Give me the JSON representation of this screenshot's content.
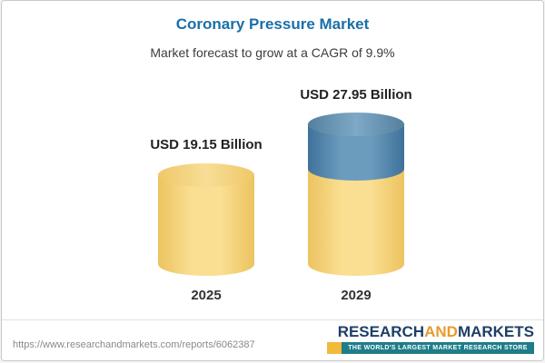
{
  "chart_data": {
    "type": "bar",
    "title": "Coronary Pressure Market",
    "subtitle": "Market forecast to grow at a CAGR of 9.9%",
    "categories": [
      "2025",
      "2029"
    ],
    "values": [
      19.15,
      27.95
    ],
    "value_labels": [
      "USD 19.15 Billion",
      "USD 27.95 Billion"
    ],
    "unit": "USD Billion",
    "cagr_pct": 9.9,
    "bar_style": "3d-cylinder",
    "colors": {
      "title": "#1a6fa8",
      "bar_base_yellow": "#f6d77e",
      "bar_growth_blue": "#4f7da3"
    },
    "legend_position": "none",
    "grid": false
  },
  "footer": {
    "source_url": "https://www.researchandmarkets.com/reports/6062387",
    "logo": {
      "research": "RESEARCH",
      "and": "AND",
      "markets": "MARKETS",
      "tagline": "THE WORLD'S LARGEST MARKET RESEARCH STORE"
    }
  }
}
